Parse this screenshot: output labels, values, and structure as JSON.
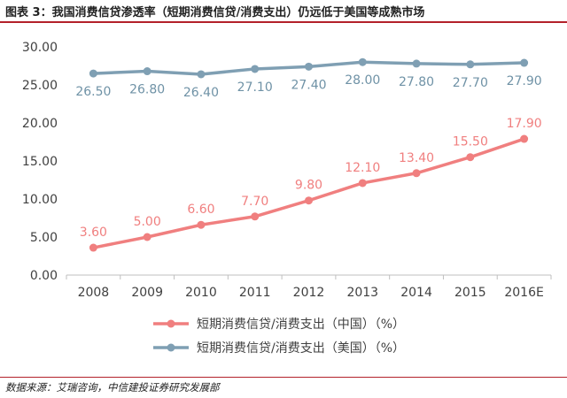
{
  "figure": {
    "title": "图表 3：我国消费信贷渗透率（短期消费信贷/消费支出）仍远低于美国等成熟市场",
    "source": "数据来源：艾瑞咨询，中信建投证券研究发展部"
  },
  "chart_data": {
    "type": "line",
    "title": "",
    "xlabel": "",
    "ylabel": "",
    "ylim": [
      0,
      30
    ],
    "yticks": [
      "0.00",
      "5.00",
      "10.00",
      "15.00",
      "20.00",
      "25.00",
      "30.00"
    ],
    "grid": false,
    "legend_position": "bottom",
    "categories": [
      "2008",
      "2009",
      "2010",
      "2011",
      "2012",
      "2013",
      "2014",
      "2015",
      "2016E"
    ],
    "series": [
      {
        "name": "短期消费信贷/消费支出（中国）（%）",
        "color": "#f07f7f",
        "label_color": "#f07f7f",
        "label_position": "above",
        "values": [
          3.6,
          5.0,
          6.6,
          7.7,
          9.8,
          12.1,
          13.4,
          15.5,
          17.9
        ],
        "labels": [
          "3.60",
          "5.00",
          "6.60",
          "7.70",
          "9.80",
          "12.10",
          "13.40",
          "15.50",
          "17.90"
        ]
      },
      {
        "name": "短期消费信贷/消费支出（美国）（%）",
        "color": "#7f9fb3",
        "label_color": "#6f92a6",
        "label_position": "below",
        "values": [
          26.5,
          26.8,
          26.4,
          27.1,
          27.4,
          28.0,
          27.8,
          27.7,
          27.9
        ],
        "labels": [
          "26.50",
          "26.80",
          "26.40",
          "27.10",
          "27.40",
          "28.00",
          "27.80",
          "27.70",
          "27.90"
        ]
      }
    ]
  }
}
